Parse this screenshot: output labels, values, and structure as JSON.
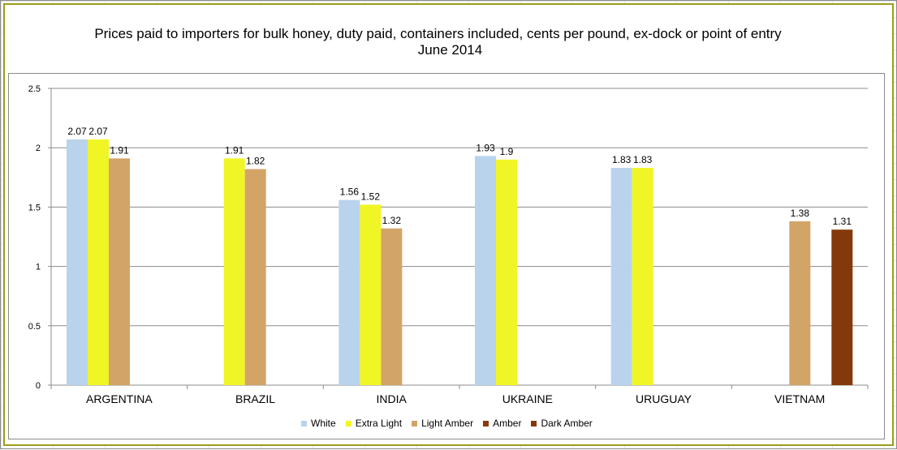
{
  "chart_data": {
    "type": "bar",
    "title": "Prices paid to importers for bulk honey, duty paid, containers included, cents per pound, ex-dock or point of entry",
    "subtitle": "June 2014",
    "xlabel": "",
    "ylabel": "",
    "ylim": [
      0,
      2.5
    ],
    "y_ticks": [
      "0",
      "0.5",
      "1",
      "1.5",
      "2",
      "2.5"
    ],
    "grid": true,
    "legend_position": "bottom",
    "categories": [
      "ARGENTINA",
      "BRAZIL",
      "INDIA",
      "UKRAINE",
      "URUGUAY",
      "VIETNAM"
    ],
    "series": [
      {
        "name": "White",
        "color": "#b9d3ec",
        "values": [
          2.07,
          null,
          1.56,
          1.93,
          1.83,
          null
        ]
      },
      {
        "name": "Extra Light",
        "color": "#f0f526",
        "values": [
          2.07,
          1.91,
          1.52,
          1.9,
          1.83,
          null
        ]
      },
      {
        "name": "Light Amber",
        "color": "#d3a468",
        "values": [
          1.91,
          1.82,
          1.32,
          null,
          null,
          1.38
        ]
      },
      {
        "name": "Amber",
        "color": "#8a3a10",
        "values": [
          null,
          null,
          null,
          null,
          null,
          null
        ]
      },
      {
        "name": "Dark Amber",
        "color": "#83390b",
        "values": [
          null,
          null,
          null,
          null,
          null,
          1.31
        ]
      }
    ]
  }
}
